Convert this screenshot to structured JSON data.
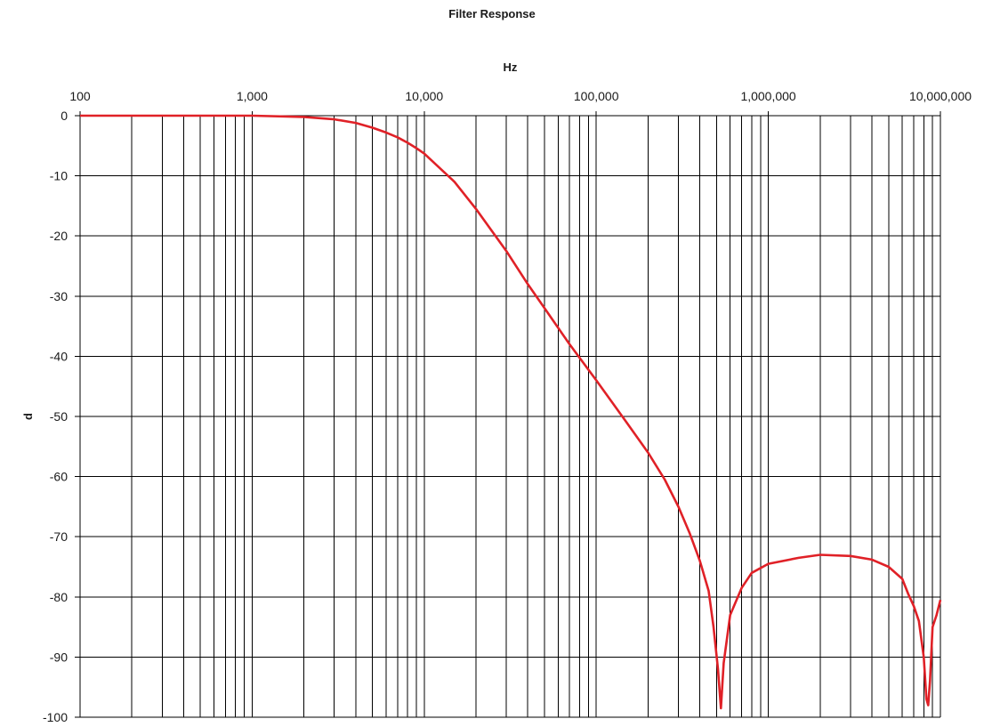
{
  "chart_data": {
    "type": "line",
    "title": "Filter Response",
    "xlabel": "Hz",
    "ylabel": "d",
    "x_scale": "log",
    "xlim": [
      100,
      10000000
    ],
    "ylim": [
      -100,
      0
    ],
    "x_tick_values": [
      100,
      1000,
      10000,
      100000,
      1000000,
      10000000
    ],
    "x_tick_labels": [
      "100",
      "1,000",
      "10,000",
      "100,000",
      "1,000,000",
      "10,000,000"
    ],
    "y_tick_values": [
      0,
      -10,
      -20,
      -30,
      -40,
      -50,
      -60,
      -70,
      -80,
      -90,
      -100
    ],
    "y_tick_labels": [
      "0",
      "-10",
      "-20",
      "-30",
      "-40",
      "-50",
      "-60",
      "-70",
      "-80",
      "-90",
      "-100"
    ],
    "grid": true,
    "series": [
      {
        "color": "#e02127",
        "x": [
          100,
          1000,
          2000,
          3000,
          4000,
          5000,
          6000,
          7000,
          8000,
          9000,
          10000,
          15000,
          20000,
          30000,
          40000,
          50000,
          70000,
          100000,
          150000,
          200000,
          250000,
          300000,
          350000,
          400000,
          450000,
          480000,
          510000,
          530000,
          550000,
          600000,
          700000,
          800000,
          1000000,
          1500000,
          2000000,
          3000000,
          4000000,
          5000000,
          6000000,
          6500000,
          7000000,
          7500000,
          8000000,
          8300000,
          8500000,
          8700000,
          9000000,
          9500000,
          10000000
        ],
        "y": [
          0,
          0,
          -0.2,
          -0.6,
          -1.2,
          -2,
          -2.8,
          -3.6,
          -4.5,
          -5.4,
          -6.3,
          -11,
          -15.5,
          -22.5,
          -28,
          -32,
          -38,
          -44,
          -51,
          -56,
          -60.5,
          -65,
          -69.5,
          -74,
          -79,
          -85,
          -92,
          -98.5,
          -91,
          -83,
          -78.5,
          -76,
          -74.5,
          -73.5,
          -73,
          -73.2,
          -73.8,
          -75,
          -77,
          -79.5,
          -81.5,
          -84,
          -90,
          -97,
          -98,
          -94,
          -85,
          -83,
          -80.5
        ]
      }
    ]
  }
}
